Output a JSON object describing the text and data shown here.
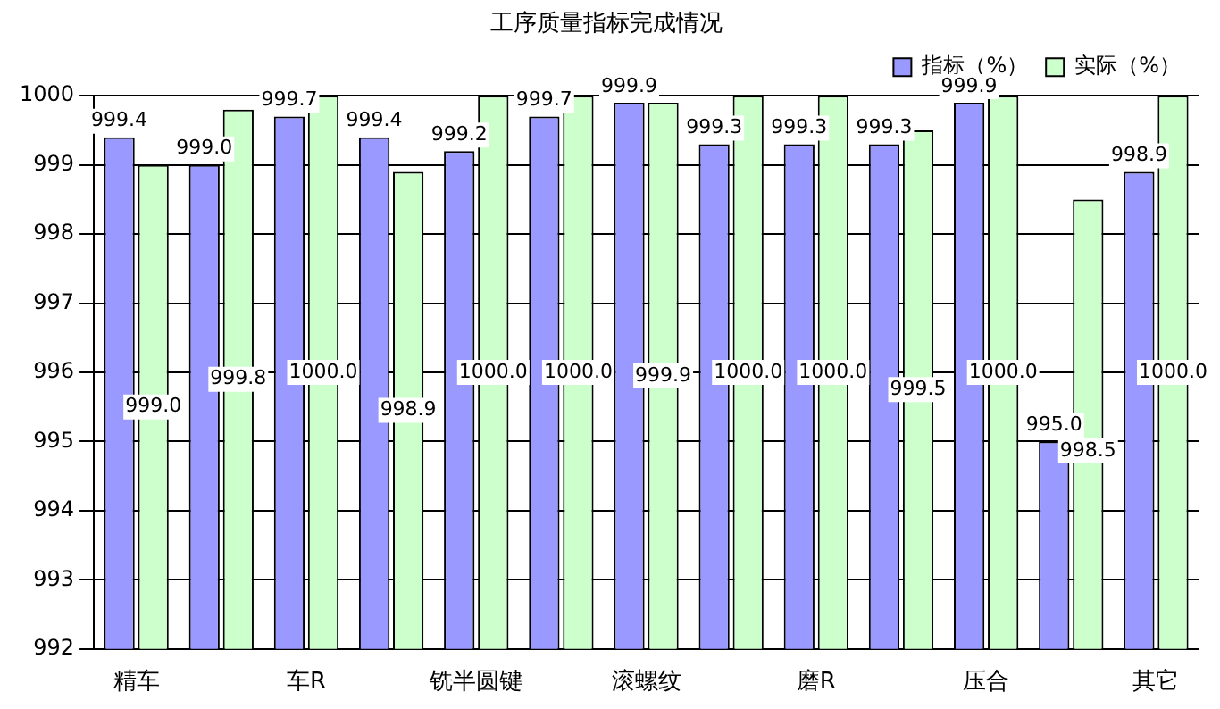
{
  "chart_data": {
    "type": "bar",
    "title": "工序质量指标完成情况",
    "categories": [
      "精车",
      null,
      "车R",
      null,
      "铣半圆键",
      null,
      "滚螺纹",
      null,
      "磨R",
      null,
      "压合",
      null,
      "其它"
    ],
    "series": [
      {
        "name": "指标（%）",
        "color": "#9999ff",
        "values": [
          999.4,
          999.0,
          999.7,
          999.4,
          999.2,
          999.7,
          999.9,
          999.3,
          999.3,
          999.3,
          999.9,
          995.0,
          998.9
        ],
        "value_labels": [
          "999.4",
          "999.0",
          "999.7",
          "999.4",
          "999.2",
          "999.7",
          "999.9",
          "999.3",
          "999.3",
          "999.3",
          "999.9",
          "995.0",
          "998.9"
        ]
      },
      {
        "name": "实际（%）",
        "color": "#ccffcc",
        "values": [
          999.0,
          999.8,
          1000.0,
          998.9,
          1000.0,
          1000.0,
          999.9,
          1000.0,
          1000.0,
          999.5,
          1000.0,
          998.5,
          1000.0
        ],
        "value_labels": [
          "999.0",
          "999.8",
          "1000.0",
          "998.9",
          "1000.0",
          "1000.0",
          "999.9",
          "1000.0",
          "1000.0",
          "999.5",
          "1000.0",
          "998.5",
          "1000.0"
        ]
      }
    ],
    "ylim": [
      992,
      1000
    ],
    "yticks": [
      992,
      993,
      994,
      995,
      996,
      997,
      998,
      999,
      1000
    ],
    "grid": "y",
    "legend": "top right"
  }
}
